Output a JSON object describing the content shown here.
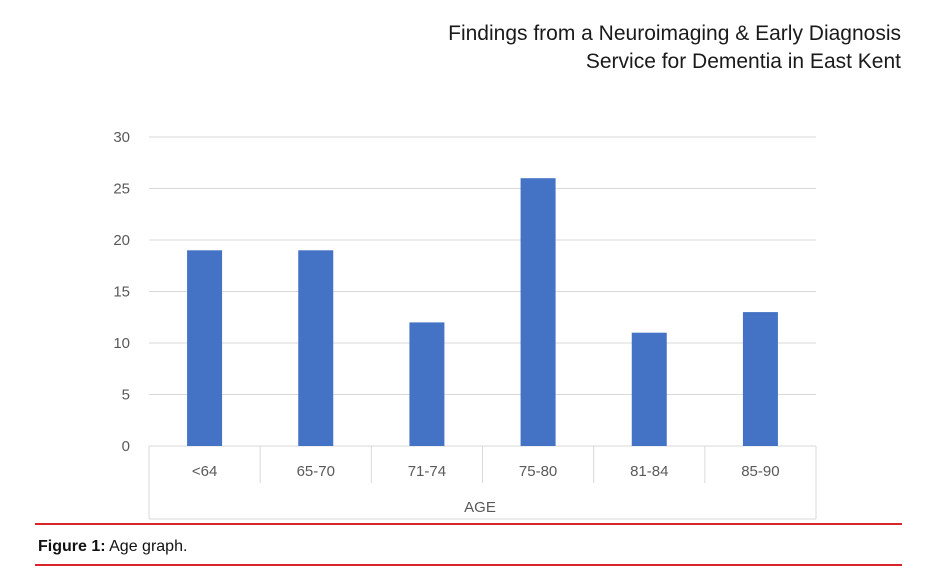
{
  "header": {
    "line1": "Findings from a Neuroimaging & Early Diagnosis",
    "line2": "Service for Dementia in East Kent"
  },
  "chart_data": {
    "type": "bar",
    "title": "",
    "xlabel": "AGE",
    "ylabel": "",
    "categories": [
      "<64",
      "65-70",
      "71-74",
      "75-80",
      "81-84",
      "85-90"
    ],
    "values": [
      19,
      19,
      12,
      26,
      11,
      13
    ],
    "ylim": [
      0,
      30
    ],
    "yticks": [
      0,
      5,
      10,
      15,
      20,
      25,
      30
    ],
    "grid": true,
    "legend": "none",
    "bar_color": "#4472c4"
  },
  "caption": {
    "label": "Figure 1:",
    "text": " Age graph."
  },
  "colors": {
    "rule": "#d9242a",
    "grid": "#d9d9d9"
  }
}
